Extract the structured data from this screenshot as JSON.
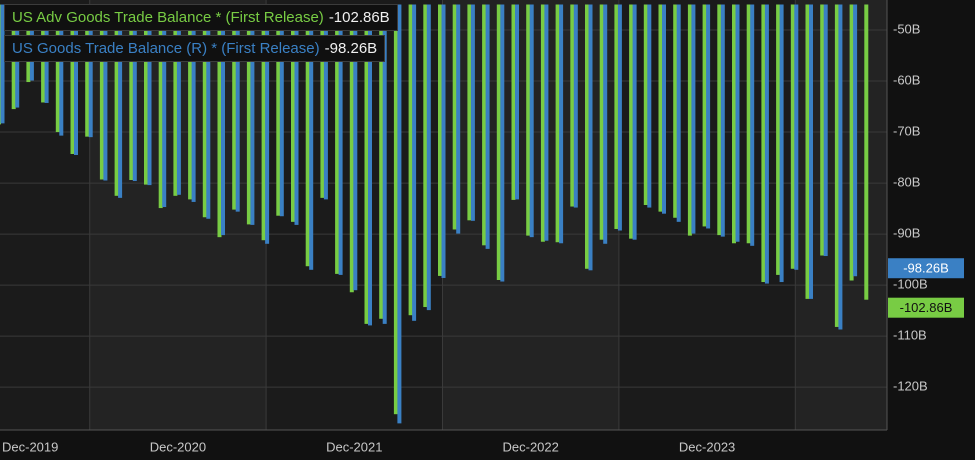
{
  "chart_data": {
    "type": "bar",
    "categories": [
      "Dec-2019",
      null,
      null,
      null,
      null,
      null,
      null,
      null,
      null,
      null,
      null,
      null,
      "Dec-2020",
      null,
      null,
      null,
      null,
      null,
      null,
      null,
      null,
      null,
      null,
      null,
      "Dec-2021",
      null,
      null,
      null,
      null,
      null,
      null,
      null,
      null,
      null,
      null,
      null,
      "Dec-2022",
      null,
      null,
      null,
      null,
      null,
      null,
      null,
      null,
      null,
      null,
      null,
      "Dec-2023",
      null,
      null,
      null,
      null,
      null,
      null,
      null,
      null,
      null,
      null,
      null
    ],
    "series": [
      {
        "name": "US Adv Goods Trade Balance * (First Release)",
        "color": "#78cc44",
        "last_value_label": "-102.86B",
        "values": [
          -68.5,
          -65.5,
          -60.2,
          -64.2,
          -70.0,
          -74.3,
          -70.9,
          -79.3,
          -82.5,
          -79.4,
          -80.3,
          -84.9,
          -82.5,
          -83.2,
          -86.7,
          -90.6,
          -85.2,
          -88.1,
          -91.2,
          -86.4,
          -87.6,
          -96.3,
          -82.9,
          -97.8,
          -101.4,
          -107.6,
          -106.6,
          -125.3,
          -105.9,
          -104.3,
          -98.2,
          -89.1,
          -87.3,
          -92.2,
          -99.0,
          -83.3,
          -90.3,
          -91.5,
          -91.6,
          -84.6,
          -96.8,
          -91.1,
          -89.0,
          -90.9,
          -84.3,
          -85.6,
          -86.8,
          -90.3,
          -88.5,
          -90.2,
          -91.8,
          -91.8,
          -99.4,
          -98.0,
          -96.8,
          -102.7,
          -94.2,
          -108.2,
          -99.1,
          -102.86
        ]
      },
      {
        "name": "US Goods Trade Balance (R) * (First Release)",
        "color": "#3a80c4",
        "last_value_label": "-98.26B",
        "values": [
          -68.3,
          -65.2,
          -59.9,
          -64.3,
          -70.7,
          -74.5,
          -71.0,
          -79.5,
          -82.9,
          -79.6,
          -80.4,
          -84.7,
          -82.3,
          -83.7,
          -87.0,
          -90.2,
          -85.6,
          -88.2,
          -91.9,
          -86.5,
          -88.2,
          -97.0,
          -83.2,
          -98.0,
          -101.0,
          -107.9,
          -107.6,
          -127.1,
          -107.0,
          -104.9,
          -98.6,
          -89.9,
          -87.4,
          -92.9,
          -99.3,
          -83.2,
          -90.6,
          -91.3,
          -91.8,
          -84.8,
          -97.1,
          -91.9,
          -89.3,
          -91.1,
          -84.8,
          -86.0,
          -87.6,
          -89.9,
          -88.9,
          -90.5,
          -91.5,
          -92.3,
          -99.7,
          -99.4,
          -97.0,
          -102.7,
          -94.3,
          -108.7,
          -98.26,
          null
        ]
      }
    ],
    "ylim": [
      -128.4,
      -45
    ],
    "yticks": [
      {
        "value": -50,
        "label": "-50B"
      },
      {
        "value": -60,
        "label": "-60B"
      },
      {
        "value": -70,
        "label": "-70B"
      },
      {
        "value": -80,
        "label": "-80B"
      },
      {
        "value": -90,
        "label": "-90B"
      },
      {
        "value": -100,
        "label": "-100B"
      },
      {
        "value": -110,
        "label": "-110B"
      },
      {
        "value": -120,
        "label": "-120B"
      }
    ],
    "grid": true
  }
}
